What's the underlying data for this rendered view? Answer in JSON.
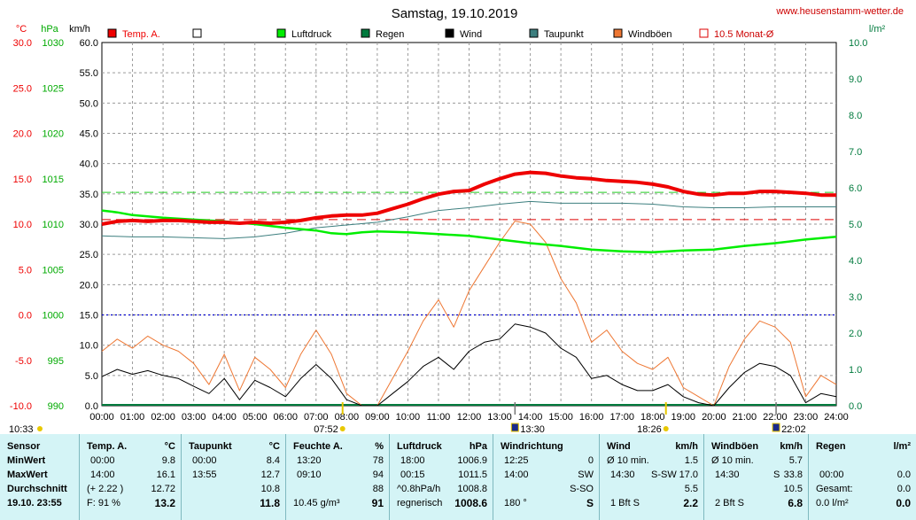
{
  "site": "www.heusenstamm-wetter.de",
  "chart_data": {
    "type": "line",
    "title": "Samstag, 19.10.2019",
    "units": {
      "temp": "°C",
      "pressure": "hPa",
      "wind": "km/h",
      "rain": "l/m²"
    },
    "legend": [
      {
        "name": "Temp. A.",
        "color": "#ee0000",
        "style": "fill"
      },
      {
        "name": "",
        "color": "#ffffff",
        "style": "fill"
      },
      {
        "name": "Luftdruck",
        "color": "#00ee00",
        "style": "fill"
      },
      {
        "name": "Regen",
        "color": "#007a3d",
        "style": "fill"
      },
      {
        "name": "Wind",
        "color": "#000000",
        "style": "fill"
      },
      {
        "name": "Taupunkt",
        "color": "#3d7f7f",
        "style": "fill"
      },
      {
        "name": "Windböen",
        "color": "#ee7733",
        "style": "fill"
      },
      {
        "name": "10.5 Monat-Ø",
        "color": "#dd0000",
        "style": "outline"
      }
    ],
    "x_ticks": [
      "00:00",
      "01:00",
      "02:00",
      "03:00",
      "04:00",
      "05:00",
      "06:00",
      "07:00",
      "08:00",
      "09:00",
      "10:00",
      "11:00",
      "12:00",
      "13:00",
      "14:00",
      "15:00",
      "16:00",
      "17:00",
      "18:00",
      "19:00",
      "20:00",
      "21:00",
      "22:00",
      "23:00",
      "24:00"
    ],
    "xlim": [
      0,
      24
    ],
    "temp_axis": {
      "ticks": [
        "30.0",
        "25.0",
        "20.0",
        "15.0",
        "10.0",
        "5.0",
        "0.0",
        "-5.0",
        "-10.0"
      ],
      "range": [
        -10,
        30
      ],
      "color": "#ee0000"
    },
    "pressure_axis": {
      "ticks": [
        "1030",
        "1025",
        "1020",
        "1015",
        "1010",
        "1005",
        "1000",
        "995",
        "990"
      ],
      "range": [
        990,
        1030
      ],
      "color": "#00aa00"
    },
    "wind_axis": {
      "ticks": [
        "60.0",
        "55.0",
        "50.0",
        "45.0",
        "40.0",
        "35.0",
        "30.0",
        "25.0",
        "20.0",
        "15.0",
        "10.0",
        "5.0",
        "0.0"
      ],
      "range": [
        0,
        60
      ]
    },
    "rain_axis": {
      "ticks": [
        "10.0",
        "9.0",
        "8.0",
        "7.0",
        "6.0",
        "5.0",
        "4.0",
        "3.0",
        "2.0",
        "1.0",
        "0.0"
      ],
      "range": [
        0,
        10
      ],
      "color": "#007a3d"
    },
    "reference_lines": {
      "month_avg_temp": 10.5,
      "pressure_ref": 1013.5,
      "zero_temp": 0
    },
    "sun_markers": {
      "sunrise": "07:52",
      "sunset": "18:26",
      "moonrise": "22:02",
      "moonset": "13:30",
      "extra_left": "10:33"
    },
    "temperature": [
      [
        0,
        10.0
      ],
      [
        0.5,
        10.3
      ],
      [
        1,
        10.4
      ],
      [
        1.5,
        10.3
      ],
      [
        2,
        10.4
      ],
      [
        2.5,
        10.4
      ],
      [
        3,
        10.3
      ],
      [
        3.5,
        10.2
      ],
      [
        4,
        10.2
      ],
      [
        4.5,
        10.1
      ],
      [
        5,
        10.2
      ],
      [
        5.5,
        10.1
      ],
      [
        6,
        10.2
      ],
      [
        6.5,
        10.4
      ],
      [
        7,
        10.7
      ],
      [
        7.5,
        10.9
      ],
      [
        8,
        11.0
      ],
      [
        8.5,
        11.0
      ],
      [
        9,
        11.2
      ],
      [
        9.5,
        11.7
      ],
      [
        10,
        12.2
      ],
      [
        10.5,
        12.8
      ],
      [
        11,
        13.3
      ],
      [
        11.5,
        13.6
      ],
      [
        12,
        13.7
      ],
      [
        12.5,
        14.4
      ],
      [
        13,
        15.0
      ],
      [
        13.5,
        15.5
      ],
      [
        14,
        15.7
      ],
      [
        14.5,
        15.6
      ],
      [
        15,
        15.3
      ],
      [
        15.5,
        15.1
      ],
      [
        16,
        15.0
      ],
      [
        16.5,
        14.8
      ],
      [
        17,
        14.7
      ],
      [
        17.5,
        14.6
      ],
      [
        18,
        14.4
      ],
      [
        18.5,
        14.1
      ],
      [
        19,
        13.6
      ],
      [
        19.5,
        13.3
      ],
      [
        20,
        13.2
      ],
      [
        20.5,
        13.4
      ],
      [
        21,
        13.4
      ],
      [
        21.5,
        13.6
      ],
      [
        22,
        13.6
      ],
      [
        22.5,
        13.5
      ],
      [
        23,
        13.4
      ],
      [
        23.5,
        13.2
      ],
      [
        24,
        13.2
      ]
    ],
    "dewpoint": [
      [
        0,
        8.7
      ],
      [
        1,
        8.6
      ],
      [
        2,
        8.6
      ],
      [
        3,
        8.5
      ],
      [
        4,
        8.4
      ],
      [
        5,
        8.6
      ],
      [
        6,
        9.0
      ],
      [
        7,
        9.6
      ],
      [
        8,
        9.9
      ],
      [
        9,
        10.2
      ],
      [
        10,
        10.8
      ],
      [
        11,
        11.5
      ],
      [
        12,
        11.8
      ],
      [
        13,
        12.2
      ],
      [
        14,
        12.5
      ],
      [
        15,
        12.3
      ],
      [
        16,
        12.3
      ],
      [
        17,
        12.3
      ],
      [
        18,
        12.2
      ],
      [
        19,
        11.9
      ],
      [
        20,
        11.8
      ],
      [
        21,
        11.8
      ],
      [
        22,
        11.9
      ],
      [
        23,
        11.9
      ],
      [
        24,
        11.9
      ]
    ],
    "pressure": [
      [
        0,
        1011.5
      ],
      [
        0.5,
        1011.3
      ],
      [
        1,
        1011.0
      ],
      [
        2,
        1010.7
      ],
      [
        3,
        1010.5
      ],
      [
        4,
        1010.3
      ],
      [
        5,
        1010.0
      ],
      [
        6,
        1009.6
      ],
      [
        7,
        1009.3
      ],
      [
        7.5,
        1009.0
      ],
      [
        8,
        1008.9
      ],
      [
        8.5,
        1009.1
      ],
      [
        9,
        1009.2
      ],
      [
        10,
        1009.1
      ],
      [
        11,
        1008.9
      ],
      [
        12,
        1008.7
      ],
      [
        13,
        1008.3
      ],
      [
        14,
        1007.9
      ],
      [
        15,
        1007.6
      ],
      [
        16,
        1007.2
      ],
      [
        17,
        1007.0
      ],
      [
        18,
        1006.9
      ],
      [
        19,
        1007.1
      ],
      [
        20,
        1007.2
      ],
      [
        21,
        1007.6
      ],
      [
        22,
        1007.9
      ],
      [
        23,
        1008.3
      ],
      [
        24,
        1008.6
      ]
    ],
    "wind": [
      [
        0,
        4.8
      ],
      [
        0.5,
        6.0
      ],
      [
        1,
        5.2
      ],
      [
        1.5,
        5.8
      ],
      [
        2,
        5.0
      ],
      [
        2.5,
        4.5
      ],
      [
        3,
        3.2
      ],
      [
        3.5,
        2.0
      ],
      [
        4,
        4.5
      ],
      [
        4.5,
        1.0
      ],
      [
        5,
        4.2
      ],
      [
        5.5,
        3.0
      ],
      [
        6,
        1.5
      ],
      [
        6.5,
        4.5
      ],
      [
        7,
        6.8
      ],
      [
        7.5,
        4.5
      ],
      [
        8,
        1.0
      ],
      [
        8.5,
        0.0
      ],
      [
        9,
        0.0
      ],
      [
        9.5,
        2.0
      ],
      [
        10,
        4.0
      ],
      [
        10.5,
        6.5
      ],
      [
        11,
        8.0
      ],
      [
        11.5,
        6.0
      ],
      [
        12,
        9.0
      ],
      [
        12.5,
        10.5
      ],
      [
        13,
        11.0
      ],
      [
        13.5,
        13.5
      ],
      [
        14,
        13.0
      ],
      [
        14.5,
        12.0
      ],
      [
        15,
        9.5
      ],
      [
        15.5,
        8.0
      ],
      [
        16,
        4.5
      ],
      [
        16.5,
        5.0
      ],
      [
        17,
        3.5
      ],
      [
        17.5,
        2.5
      ],
      [
        18,
        2.5
      ],
      [
        18.5,
        3.5
      ],
      [
        19,
        1.5
      ],
      [
        19.5,
        0.5
      ],
      [
        20,
        0.0
      ],
      [
        20.5,
        3.0
      ],
      [
        21,
        5.5
      ],
      [
        21.5,
        7.0
      ],
      [
        22,
        6.5
      ],
      [
        22.5,
        5.0
      ],
      [
        23,
        0.5
      ],
      [
        23.5,
        2.0
      ],
      [
        24,
        1.5
      ]
    ],
    "gusts": [
      [
        0,
        9.0
      ],
      [
        0.5,
        11.0
      ],
      [
        1,
        9.5
      ],
      [
        1.5,
        11.5
      ],
      [
        2,
        10.0
      ],
      [
        2.5,
        9.0
      ],
      [
        3,
        7.0
      ],
      [
        3.5,
        3.5
      ],
      [
        4,
        8.5
      ],
      [
        4.5,
        2.5
      ],
      [
        5,
        8.0
      ],
      [
        5.5,
        6.0
      ],
      [
        6,
        3.0
      ],
      [
        6.5,
        8.5
      ],
      [
        7,
        12.5
      ],
      [
        7.5,
        8.5
      ],
      [
        8,
        2.0
      ],
      [
        8.5,
        0.0
      ],
      [
        9,
        0.0
      ],
      [
        9.5,
        4.5
      ],
      [
        10,
        9.0
      ],
      [
        10.5,
        14.0
      ],
      [
        11,
        17.5
      ],
      [
        11.5,
        13.0
      ],
      [
        12,
        19.0
      ],
      [
        12.5,
        23.0
      ],
      [
        13,
        27.0
      ],
      [
        13.5,
        30.5
      ],
      [
        14,
        30.0
      ],
      [
        14.5,
        27.0
      ],
      [
        15,
        21.0
      ],
      [
        15.5,
        17.0
      ],
      [
        16,
        10.5
      ],
      [
        16.5,
        12.5
      ],
      [
        17,
        9.0
      ],
      [
        17.5,
        7.0
      ],
      [
        18,
        6.0
      ],
      [
        18.5,
        8.0
      ],
      [
        19,
        3.0
      ],
      [
        19.5,
        1.5
      ],
      [
        20,
        0.0
      ],
      [
        20.5,
        6.5
      ],
      [
        21,
        11.0
      ],
      [
        21.5,
        14.0
      ],
      [
        22,
        13.0
      ],
      [
        22.5,
        10.5
      ],
      [
        23,
        1.5
      ],
      [
        23.5,
        5.0
      ],
      [
        24,
        3.5
      ]
    ]
  },
  "table": {
    "row_labels": {
      "header": "Sensor",
      "min": "MinWert",
      "max": "MaxWert",
      "avg": "Durchschnitt",
      "now": "19.10. 23:55"
    },
    "temp": {
      "header": "Temp. A.",
      "unit": "°C",
      "min_time": "00:00",
      "min": "9.8",
      "max_time": "14:00",
      "max": "16.1",
      "avg_note": "(+ 2.22 )",
      "avg": "12.72",
      "now_note": "F: 91 %",
      "now": "13.2"
    },
    "dew": {
      "header": "Taupunkt",
      "unit": "°C",
      "min_time": "00:00",
      "min": "8.4",
      "max_time": "13:55",
      "max": "12.7",
      "avg": "10.8",
      "now": "11.8"
    },
    "hum": {
      "header": "Feuchte A.",
      "unit": "%",
      "min_time": "13:20",
      "min": "78",
      "max_time": "09:10",
      "max": "94",
      "avg": "88",
      "now_note": "10.45 g/m³",
      "now": "91"
    },
    "press": {
      "header": "Luftdruck",
      "unit": "hPa",
      "min_time": "18:00",
      "min": "1006.9",
      "max_time": "00:15",
      "max": "1011.5",
      "avg_note": "^0.8hPa/h",
      "avg": "1008.8",
      "now_note": "regnerisch",
      "now": "1008.6"
    },
    "dir": {
      "header": "Windrichtung",
      "min_time": "12:25",
      "min": "0",
      "max_time": "14:00",
      "max": "SW",
      "avg": "S-SO",
      "now_note": "180 °",
      "now": "S"
    },
    "wind": {
      "header": "Wind",
      "unit": "km/h",
      "min_time": "Ø 10 min.",
      "min": "1.5",
      "max_time": "14:30",
      "max_note": "S-SW",
      "max": "17.0",
      "avg": "5.5",
      "now_note": "1 Bft S",
      "now": "2.2"
    },
    "gust": {
      "header": "Windböen",
      "unit": "km/h",
      "min_time": "Ø 10 min.",
      "min": "5.7",
      "max_time": "14:30",
      "max_note": "S",
      "max": "33.8",
      "avg": "10.5",
      "now_note": "2 Bft S",
      "now": "6.8"
    },
    "rain": {
      "header": "Regen",
      "unit": "l/m²",
      "max_time": "00:00",
      "max": "0.0",
      "avg_note": "Gesamt:",
      "avg": "0.0",
      "now_note": "0.0 l/m²",
      "now": "0.0"
    }
  }
}
